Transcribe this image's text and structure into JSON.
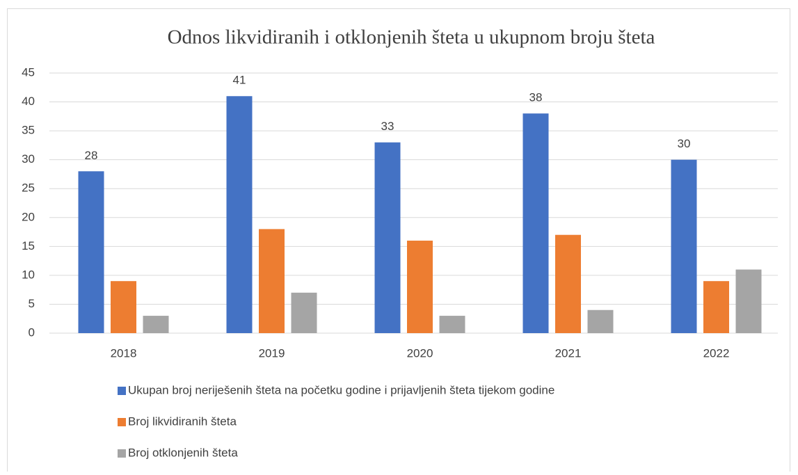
{
  "chart_data": {
    "type": "bar",
    "title": "Odnos likvidiranih i otklonjenih šteta u ukupnom broju šteta",
    "categories": [
      "2018",
      "2019",
      "2020",
      "2021",
      "2022"
    ],
    "series": [
      {
        "name": "Ukupan broj neriješenih šteta na početku godine i prijavljenih šteta tijekom godine",
        "color": "#4472c4",
        "values": [
          28,
          41,
          33,
          38,
          30
        ],
        "show_labels": true
      },
      {
        "name": "Broj likvidiranih šteta",
        "color": "#ed7d31",
        "values": [
          9,
          18,
          16,
          17,
          9
        ]
      },
      {
        "name": "Broj otklonjenih šteta",
        "color": "#a5a5a5",
        "values": [
          3,
          7,
          3,
          4,
          11
        ]
      }
    ],
    "ylim": [
      0,
      45
    ],
    "yticks": [
      0,
      5,
      10,
      15,
      20,
      25,
      30,
      35,
      40,
      45
    ],
    "grid": true,
    "legend": "bottom"
  }
}
